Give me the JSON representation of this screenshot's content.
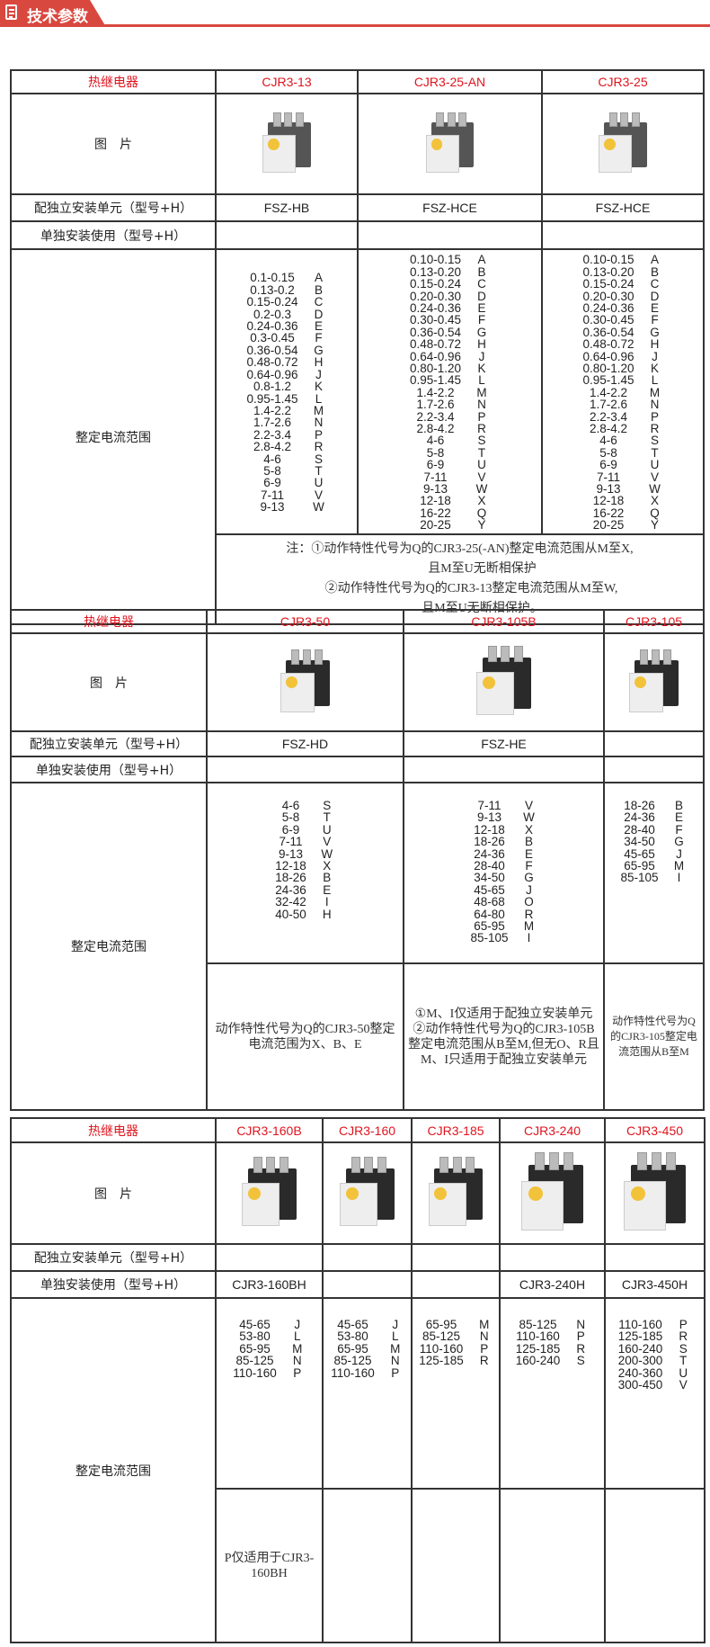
{
  "header": {
    "title": "技术参数",
    "icon": "document-icon",
    "accent": "#d9483f"
  },
  "colors": {
    "header_text": "#e0141e",
    "border": "#333333"
  },
  "row_labels": {
    "product": "热继电器",
    "picture": "图　片",
    "unit": "配独立安装单元（型号+H）",
    "standalone": "单独安装使用（型号+H）",
    "range": "整定电流范围"
  },
  "tables": [
    {
      "models": [
        "CJR3-13",
        "CJR3-25-AN",
        "CJR3-25"
      ],
      "unit": [
        "FSZ-HB",
        "FSZ-HCE",
        "FSZ-HCE"
      ],
      "standalone": [
        "",
        "",
        ""
      ],
      "ranges": [
        [
          [
            "0.1-0.15",
            "A"
          ],
          [
            "0.13-0.2",
            "B"
          ],
          [
            "0.15-0.24",
            "C"
          ],
          [
            "0.2-0.3",
            "D"
          ],
          [
            "0.24-0.36",
            "E"
          ],
          [
            "0.3-0.45",
            "F"
          ],
          [
            "0.36-0.54",
            "G"
          ],
          [
            "0.48-0.72",
            "H"
          ],
          [
            "0.64-0.96",
            "J"
          ],
          [
            "0.8-1.2",
            "K"
          ],
          [
            "0.95-1.45",
            "L"
          ],
          [
            "1.4-2.2",
            "M"
          ],
          [
            "1.7-2.6",
            "N"
          ],
          [
            "2.2-3.4",
            "P"
          ],
          [
            "2.8-4.2",
            "R"
          ],
          [
            "4-6",
            "S"
          ],
          [
            "5-8",
            "T"
          ],
          [
            "6-9",
            "U"
          ],
          [
            "7-11",
            "V"
          ],
          [
            "9-13",
            "W"
          ]
        ],
        [
          [
            "0.10-0.15",
            "A"
          ],
          [
            "0.13-0.20",
            "B"
          ],
          [
            "0.15-0.24",
            "C"
          ],
          [
            "0.20-0.30",
            "D"
          ],
          [
            "0.24-0.36",
            "E"
          ],
          [
            "0.30-0.45",
            "F"
          ],
          [
            "0.36-0.54",
            "G"
          ],
          [
            "0.48-0.72",
            "H"
          ],
          [
            "0.64-0.96",
            "J"
          ],
          [
            "0.80-1.20",
            "K"
          ],
          [
            "0.95-1.45",
            "L"
          ],
          [
            "1.4-2.2",
            "M"
          ],
          [
            "1.7-2.6",
            "N"
          ],
          [
            "2.2-3.4",
            "P"
          ],
          [
            "2.8-4.2",
            "R"
          ],
          [
            "4-6",
            "S"
          ],
          [
            "5-8",
            "T"
          ],
          [
            "6-9",
            "U"
          ],
          [
            "7-11",
            "V"
          ],
          [
            "9-13",
            "W"
          ],
          [
            "12-18",
            "X"
          ],
          [
            "16-22",
            "Q"
          ],
          [
            "20-25",
            "Y"
          ]
        ],
        [
          [
            "0.10-0.15",
            "A"
          ],
          [
            "0.13-0.20",
            "B"
          ],
          [
            "0.15-0.24",
            "C"
          ],
          [
            "0.20-0.30",
            "D"
          ],
          [
            "0.24-0.36",
            "E"
          ],
          [
            "0.30-0.45",
            "F"
          ],
          [
            "0.36-0.54",
            "G"
          ],
          [
            "0.48-0.72",
            "H"
          ],
          [
            "0.64-0.96",
            "J"
          ],
          [
            "0.80-1.20",
            "K"
          ],
          [
            "0.95-1.45",
            "L"
          ],
          [
            "1.4-2.2",
            "M"
          ],
          [
            "1.7-2.6",
            "N"
          ],
          [
            "2.2-3.4",
            "P"
          ],
          [
            "2.8-4.2",
            "R"
          ],
          [
            "4-6",
            "S"
          ],
          [
            "5-8",
            "T"
          ],
          [
            "6-9",
            "U"
          ],
          [
            "7-11",
            "V"
          ],
          [
            "9-13",
            "W"
          ],
          [
            "12-18",
            "X"
          ],
          [
            "16-22",
            "Q"
          ],
          [
            "20-25",
            "Y"
          ]
        ]
      ],
      "merged_note": [
        "注：①动作特性代号为Q的CJR3-25(-AN)整定电流范围从M至X,",
        "且M至U无断相保护",
        "②动作特性代号为Q的CJR3-13整定电流范围从M至W,",
        "且M至U无断相保护。"
      ]
    },
    {
      "models": [
        "CJR3-50",
        "CJR3-105B",
        "CJR3-105"
      ],
      "unit": [
        "FSZ-HD",
        "FSZ-HE",
        ""
      ],
      "standalone": [
        "",
        "",
        ""
      ],
      "ranges": [
        [
          [
            "4-6",
            "S"
          ],
          [
            "5-8",
            "T"
          ],
          [
            "6-9",
            "U"
          ],
          [
            "7-11",
            "V"
          ],
          [
            "9-13",
            "W"
          ],
          [
            "12-18",
            "X"
          ],
          [
            "18-26",
            "B"
          ],
          [
            "24-36",
            "E"
          ],
          [
            "32-42",
            "I"
          ],
          [
            "40-50",
            "H"
          ]
        ],
        [
          [
            "7-11",
            "V"
          ],
          [
            "9-13",
            "W"
          ],
          [
            "12-18",
            "X"
          ],
          [
            "18-26",
            "B"
          ],
          [
            "24-36",
            "E"
          ],
          [
            "28-40",
            "F"
          ],
          [
            "34-50",
            "G"
          ],
          [
            "45-65",
            "J"
          ],
          [
            "48-68",
            "O"
          ],
          [
            "64-80",
            "R"
          ],
          [
            "65-95",
            "M"
          ],
          [
            "85-105",
            "I"
          ]
        ],
        [
          [
            "18-26",
            "B"
          ],
          [
            "24-36",
            "E"
          ],
          [
            "28-40",
            "F"
          ],
          [
            "34-50",
            "G"
          ],
          [
            "45-65",
            "J"
          ],
          [
            "65-95",
            "M"
          ],
          [
            "85-105",
            "I"
          ]
        ]
      ],
      "notes": [
        "动作特性代号为Q的CJR3-50整定电流范围为X、B、E",
        "①M、I仅适用于配独立安装单元 ②动作特性代号为Q的CJR3-105B整定电流范围从B至M,但无O、R且M、I只适用于配独立安装单元",
        "动作特性代号为Q的CJR3-105整定电流范围从B至M"
      ]
    },
    {
      "models": [
        "CJR3-160B",
        "CJR3-160",
        "CJR3-185",
        "CJR3-240",
        "CJR3-450"
      ],
      "unit": [
        "",
        "",
        "",
        "",
        ""
      ],
      "standalone": [
        "CJR3-160BH",
        "",
        "",
        "CJR3-240H",
        "CJR3-450H"
      ],
      "ranges": [
        [
          [
            "45-65",
            "J"
          ],
          [
            "53-80",
            "L"
          ],
          [
            "65-95",
            "M"
          ],
          [
            "85-125",
            "N"
          ],
          [
            "110-160",
            "P"
          ]
        ],
        [
          [
            "45-65",
            "J"
          ],
          [
            "53-80",
            "L"
          ],
          [
            "65-95",
            "M"
          ],
          [
            "85-125",
            "N"
          ],
          [
            "110-160",
            "P"
          ]
        ],
        [
          [
            "65-95",
            "M"
          ],
          [
            "85-125",
            "N"
          ],
          [
            "110-160",
            "P"
          ],
          [
            "125-185",
            "R"
          ]
        ],
        [
          [
            "85-125",
            "N"
          ],
          [
            "110-160",
            "P"
          ],
          [
            "125-185",
            "R"
          ],
          [
            "160-240",
            "S"
          ]
        ],
        [
          [
            "110-160",
            "P"
          ],
          [
            "125-185",
            "R"
          ],
          [
            "160-240",
            "S"
          ],
          [
            "200-300",
            "T"
          ],
          [
            "240-360",
            "U"
          ],
          [
            "300-450",
            "V"
          ]
        ]
      ],
      "notes": [
        "P仅适用于CJR3-160BH",
        "",
        "",
        "",
        ""
      ]
    }
  ]
}
